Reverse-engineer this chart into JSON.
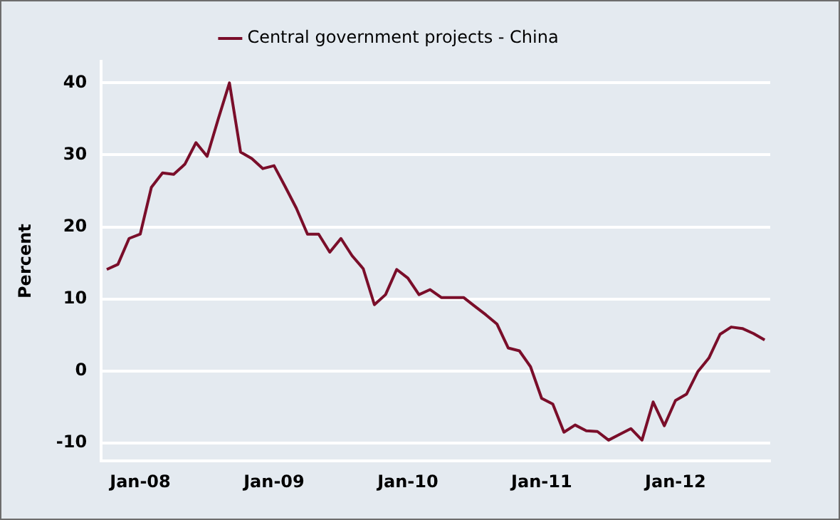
{
  "chart_data": {
    "type": "line",
    "ylabel": "Percent",
    "legend": "top",
    "categories": [
      null,
      null,
      null,
      "Jan-08",
      null,
      null,
      null,
      null,
      null,
      null,
      null,
      null,
      null,
      null,
      null,
      "Jan-09",
      null,
      null,
      null,
      null,
      null,
      null,
      null,
      null,
      null,
      null,
      null,
      "Jan-10",
      null,
      null,
      null,
      null,
      null,
      null,
      null,
      null,
      null,
      null,
      null,
      "Jan-11",
      null,
      null,
      null,
      null,
      null,
      null,
      null,
      null,
      null,
      null,
      null,
      "Jan-12",
      null,
      null,
      null,
      null,
      null,
      null,
      null,
      null
    ],
    "series": [
      {
        "name": "Central government projects - China",
        "color": "#7a0e2a",
        "values": [
          14.1,
          14.8,
          18.4,
          19.0,
          25.5,
          27.5,
          27.3,
          28.7,
          31.7,
          29.8,
          35.0,
          40.0,
          30.4,
          29.5,
          28.1,
          28.5,
          25.6,
          22.6,
          19.0,
          19.0,
          16.5,
          18.4,
          16.0,
          14.2,
          9.2,
          10.6,
          14.1,
          12.9,
          10.6,
          11.3,
          10.2,
          10.2,
          10.2,
          9.0,
          7.8,
          6.5,
          3.2,
          2.8,
          0.6,
          -3.8,
          -4.6,
          -8.5,
          -7.5,
          -8.3,
          -8.4,
          -9.6,
          -8.8,
          -8.0,
          -9.6,
          -4.3,
          -7.6,
          -4.1,
          -3.2,
          -0.1,
          1.8,
          5.1,
          6.1,
          5.9,
          5.2,
          4.3
        ]
      }
    ],
    "ylim": [
      -12.5,
      43
    ],
    "yticks": [
      -10,
      0,
      10,
      20,
      30,
      40
    ],
    "grid": "y",
    "marker": "none",
    "line_style": "solid"
  }
}
